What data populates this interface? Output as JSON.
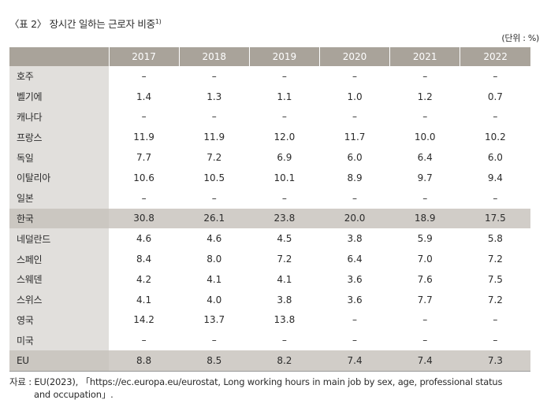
{
  "title": "〈표 2〉 장시간 일하는 근로자 비중",
  "title_note": "1)",
  "unit": "(단위 : %)",
  "table": {
    "headers": [
      "",
      "2017",
      "2018",
      "2019",
      "2020",
      "2021",
      "2022"
    ],
    "rows": [
      {
        "label": "호주",
        "values": [
          "–",
          "–",
          "–",
          "–",
          "–",
          "–"
        ]
      },
      {
        "label": "벨기에",
        "values": [
          "1.4",
          "1.3",
          "1.1",
          "1.0",
          "1.2",
          "0.7"
        ]
      },
      {
        "label": "캐나다",
        "values": [
          "–",
          "–",
          "–",
          "–",
          "–",
          "–"
        ]
      },
      {
        "label": "프랑스",
        "values": [
          "11.9",
          "11.9",
          "12.0",
          "11.7",
          "10.0",
          "10.2"
        ]
      },
      {
        "label": "독일",
        "values": [
          "7.7",
          "7.2",
          "6.9",
          "6.0",
          "6.4",
          "6.0"
        ]
      },
      {
        "label": "이탈리아",
        "values": [
          "10.6",
          "10.5",
          "10.1",
          "8.9",
          "9.7",
          "9.4"
        ]
      },
      {
        "label": "일본",
        "values": [
          "–",
          "–",
          "–",
          "–",
          "–",
          "–"
        ]
      },
      {
        "label": "한국",
        "values": [
          "30.8",
          "26.1",
          "23.8",
          "20.0",
          "18.9",
          "17.5"
        ],
        "highlight": true
      },
      {
        "label": "네덜란드",
        "values": [
          "4.6",
          "4.6",
          "4.5",
          "3.8",
          "5.9",
          "5.8"
        ]
      },
      {
        "label": "스페인",
        "values": [
          "8.4",
          "8.0",
          "7.2",
          "6.4",
          "7.0",
          "7.2"
        ]
      },
      {
        "label": "스웨덴",
        "values": [
          "4.2",
          "4.1",
          "4.1",
          "3.6",
          "7.6",
          "7.5"
        ]
      },
      {
        "label": "스위스",
        "values": [
          "4.1",
          "4.0",
          "3.8",
          "3.6",
          "7.7",
          "7.2"
        ]
      },
      {
        "label": "영국",
        "values": [
          "14.2",
          "13.7",
          "13.8",
          "–",
          "–",
          "–"
        ]
      },
      {
        "label": "미국",
        "values": [
          "–",
          "–",
          "–",
          "–",
          "–",
          "–"
        ]
      },
      {
        "label": "EU",
        "values": [
          "8.8",
          "8.5",
          "8.2",
          "7.4",
          "7.4",
          "7.3"
        ],
        "highlight": true
      }
    ]
  },
  "source": {
    "line1": "자료 : EU(2023), 「https://ec.europa.eu/eurostat, Long working hours in main job by sex, age, professional status",
    "line2": "and occupation」."
  }
}
